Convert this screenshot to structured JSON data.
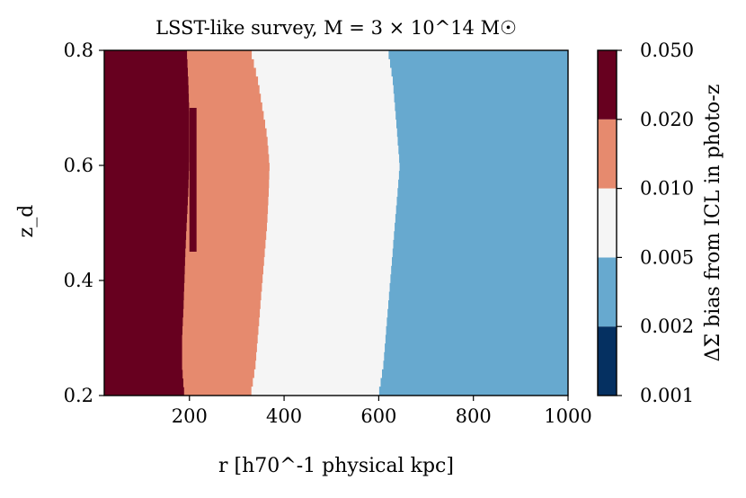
{
  "chart_data": {
    "type": "heatmap",
    "title": "LSST-like survey, M = 3 × 10^14 M☉",
    "xlabel": "r [h70^-1 physical kpc]",
    "ylabel": "z_d",
    "xlim": [
      20,
      1000
    ],
    "ylim": [
      0.2,
      0.8
    ],
    "x_ticks": [
      200,
      400,
      600,
      800,
      1000
    ],
    "y_ticks": [
      0.2,
      0.4,
      0.6,
      0.8
    ],
    "colorbar": {
      "label": "ΔΣ bias from ICL in photo-z",
      "bin_edges": [
        0.001,
        0.002,
        0.005,
        0.01,
        0.02,
        0.05
      ],
      "tick_labels": [
        "0.001",
        "0.002",
        "0.005",
        "0.010",
        "0.020",
        "0.050"
      ],
      "colors": [
        "#053061",
        "#67a9cf",
        "#f5f5f5",
        "#e68a6e",
        "#67001f"
      ]
    },
    "boundaries": {
      "z": [
        0.2,
        0.25,
        0.3,
        0.35,
        0.4,
        0.45,
        0.5,
        0.55,
        0.6,
        0.65,
        0.7,
        0.75,
        0.8
      ],
      "r_0.020": [
        190,
        185,
        185,
        188,
        190,
        192,
        195,
        198,
        200,
        200,
        200,
        198,
        195
      ],
      "r_0.010": [
        330,
        340,
        345,
        350,
        355,
        360,
        365,
        368,
        370,
        365,
        355,
        345,
        330
      ],
      "r_0.005": [
        600,
        610,
        615,
        620,
        625,
        630,
        635,
        640,
        645,
        640,
        635,
        630,
        620
      ]
    },
    "islands": [
      {
        "bin": "0.020-0.050",
        "r_range": [
          200,
          215
        ],
        "z_range": [
          0.45,
          0.7
        ]
      }
    ]
  }
}
